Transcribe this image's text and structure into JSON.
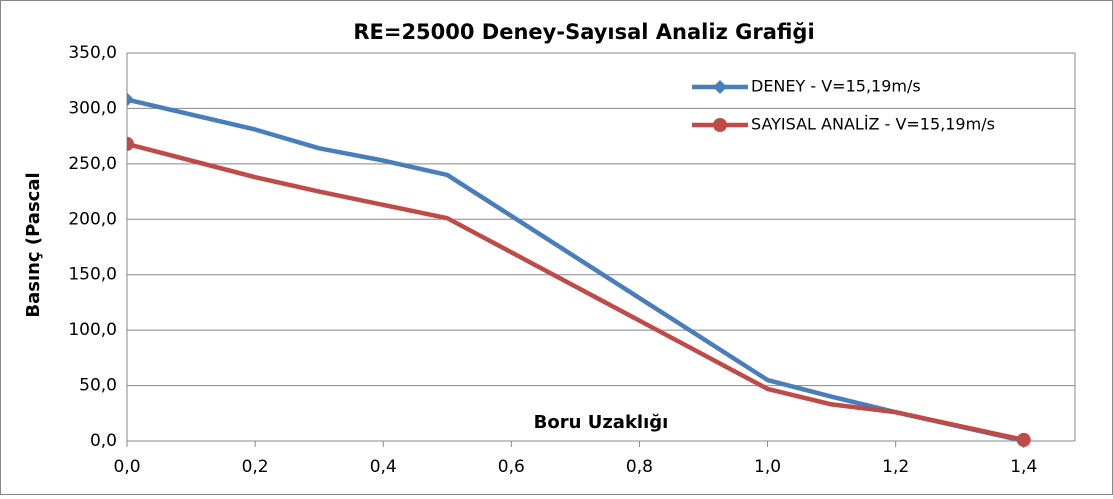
{
  "chart_data": {
    "type": "line",
    "title": "RE=25000 Deney-Sayısal Analiz Grafiği",
    "xlabel": "Boru Uzaklığı",
    "ylabel": "Basınç (Pascal",
    "x": [
      0,
      0.2,
      0.3,
      0.4,
      0.5,
      1.0,
      1.1,
      1.2,
      1.4
    ],
    "series": [
      {
        "name": "DENEY - V=15,19m/s",
        "color": "#4a7ebb",
        "marker": "diamond",
        "values": [
          308,
          281,
          264,
          253,
          240,
          55,
          40,
          26,
          0
        ]
      },
      {
        "name": "SAYISAL ANALİZ - V=15,19m/s",
        "color": "#be4b48",
        "marker": "circle",
        "values": [
          268,
          238,
          225,
          213,
          201,
          47,
          33,
          26,
          1
        ]
      }
    ],
    "xlim": [
      0,
      1.48
    ],
    "ylim": [
      0,
      350
    ],
    "xticks": [
      {
        "value": 0,
        "label": "0,0"
      },
      {
        "value": 0.2,
        "label": "0,2"
      },
      {
        "value": 0.4,
        "label": "0,4"
      },
      {
        "value": 0.6,
        "label": "0,6"
      },
      {
        "value": 0.8,
        "label": "0,8"
      },
      {
        "value": 1.0,
        "label": "1,0"
      },
      {
        "value": 1.2,
        "label": "1,2"
      },
      {
        "value": 1.4,
        "label": "1,4"
      }
    ],
    "yticks": [
      {
        "value": 0,
        "label": "0,0"
      },
      {
        "value": 50,
        "label": "50,0"
      },
      {
        "value": 100,
        "label": "100,0"
      },
      {
        "value": 150,
        "label": "150,0"
      },
      {
        "value": 200,
        "label": "200,0"
      },
      {
        "value": 250,
        "label": "250,0"
      },
      {
        "value": 300,
        "label": "300,0"
      },
      {
        "value": 350,
        "label": "350,0"
      }
    ],
    "grid": true
  }
}
